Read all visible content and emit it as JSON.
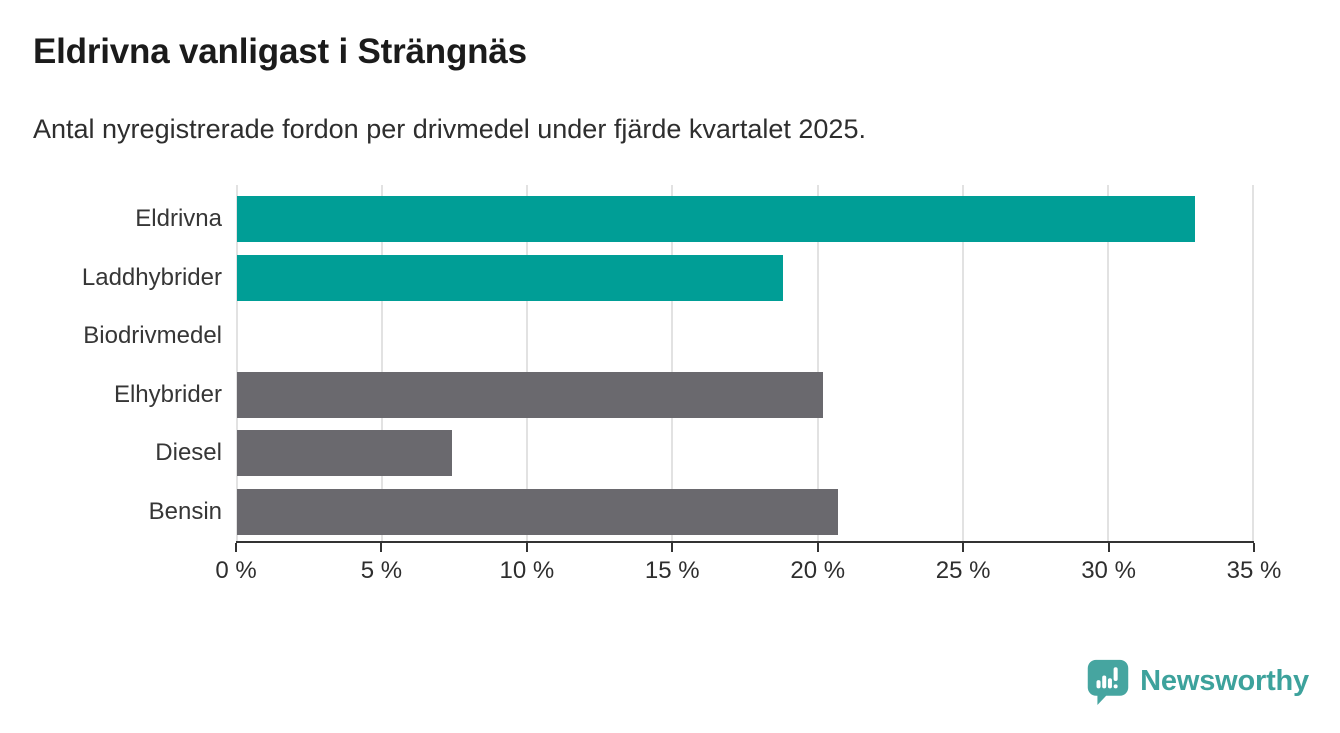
{
  "title": "Eldrivna vanligast i Strängnäs",
  "subtitle": "Antal nyregistrerade fordon per drivmedel under fjärde kvartalet 2025.",
  "footer": {
    "brand": "Newsworthy",
    "logo_icon": "newsworthy-pin-barchart-icon"
  },
  "colors": {
    "teal_bar": "#009e96",
    "gray_bar": "#6a696e",
    "gridline": "#e2e2e2",
    "axis": "#333333",
    "text": "#2e2e2e",
    "title_text": "#1b1b1b",
    "logo": "#46a5a0",
    "wordmark": "#3da29c",
    "background": "#ffffff"
  },
  "chart_data": {
    "type": "bar",
    "orientation": "horizontal",
    "title": "Eldrivna vanligast i Strängnäs",
    "subtitle": "Antal nyregistrerade fordon per drivmedel under fjärde kvartalet 2025.",
    "xlabel": "",
    "ylabel": "",
    "categories": [
      "Eldrivna",
      "Laddhybrider",
      "Biodrivmedel",
      "Elhybrider",
      "Diesel",
      "Bensin"
    ],
    "values": [
      33.0,
      18.8,
      0,
      20.2,
      7.4,
      20.7
    ],
    "unit": "%",
    "bar_colors": [
      "#009e96",
      "#009e96",
      "#009e96",
      "#6a696e",
      "#6a696e",
      "#6a696e"
    ],
    "xlim": [
      0,
      35
    ],
    "x_ticks": [
      0,
      5,
      10,
      15,
      20,
      25,
      30,
      35
    ],
    "x_tick_labels": [
      "0 %",
      "5 %",
      "10 %",
      "15 %",
      "20 %",
      "25 %",
      "30 %",
      "35 %"
    ],
    "grid": "vertical",
    "legend": "none"
  }
}
